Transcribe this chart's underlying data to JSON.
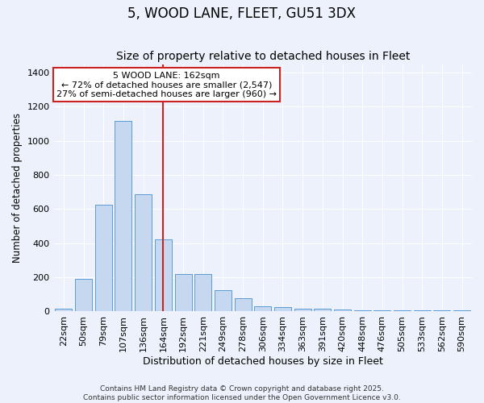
{
  "title": "5, WOOD LANE, FLEET, GU51 3DX",
  "subtitle": "Size of property relative to detached houses in Fleet",
  "xlabel": "Distribution of detached houses by size in Fleet",
  "ylabel": "Number of detached properties",
  "categories": [
    "22sqm",
    "50sqm",
    "79sqm",
    "107sqm",
    "136sqm",
    "164sqm",
    "192sqm",
    "221sqm",
    "249sqm",
    "278sqm",
    "306sqm",
    "334sqm",
    "363sqm",
    "391sqm",
    "420sqm",
    "448sqm",
    "476sqm",
    "505sqm",
    "533sqm",
    "562sqm",
    "590sqm"
  ],
  "values": [
    15,
    190,
    625,
    1115,
    685,
    425,
    220,
    220,
    125,
    80,
    30,
    28,
    15,
    15,
    10,
    5,
    5,
    5,
    5,
    5,
    5
  ],
  "bar_color": "#c5d8f0",
  "bar_edge_color": "#5b9bd5",
  "reference_line_index": 5,
  "reference_line_label": "5 WOOD LANE: 162sqm",
  "annotation_line1": "← 72% of detached houses are smaller (2,547)",
  "annotation_line2": "27% of semi-detached houses are larger (960) →",
  "annotation_box_color": "#ffffff",
  "annotation_box_edge": "#cc2222",
  "ref_line_color": "#cc2222",
  "background_color": "#edf1fb",
  "grid_color": "#ffffff",
  "footer_line1": "Contains HM Land Registry data © Crown copyright and database right 2025.",
  "footer_line2": "Contains public sector information licensed under the Open Government Licence v3.0.",
  "ylim": [
    0,
    1450
  ],
  "yticks": [
    0,
    200,
    400,
    600,
    800,
    1000,
    1200,
    1400
  ],
  "title_fontsize": 12,
  "subtitle_fontsize": 10,
  "xlabel_fontsize": 9,
  "ylabel_fontsize": 8.5,
  "tick_fontsize": 8,
  "annotation_fontsize": 8,
  "footer_fontsize": 6.5
}
